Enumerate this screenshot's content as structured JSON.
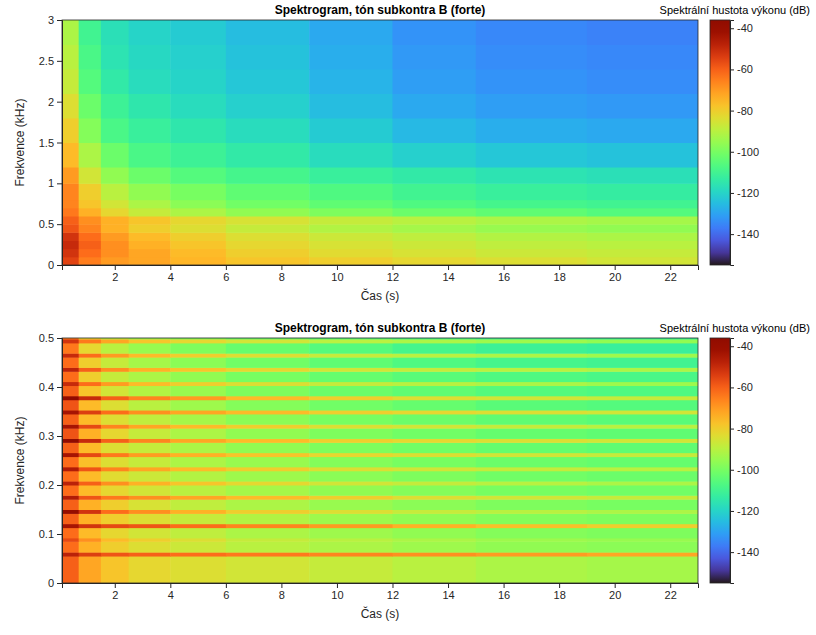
{
  "chart_data": [
    {
      "type": "heatmap",
      "title": "Spektrogram, tón subkontra B (forte)",
      "x_label": "Čas (s)",
      "y_label": "Frekvence (kHz)",
      "xlim": [
        0.1,
        23
      ],
      "xticks": [
        2,
        4,
        6,
        8,
        10,
        12,
        14,
        16,
        18,
        20,
        22
      ],
      "ylim": [
        0,
        3
      ],
      "yticks": [
        0,
        0.5,
        1,
        1.5,
        2,
        2.5,
        3
      ],
      "x_bins": [
        0.1,
        0.7,
        1.5,
        2.5,
        4,
        6,
        9,
        12,
        15,
        19,
        23
      ],
      "y_bins": [
        0,
        0.1,
        0.2,
        0.3,
        0.4,
        0.5,
        0.6,
        0.7,
        0.8,
        1,
        1.2,
        1.5,
        1.8,
        2.1,
        2.4,
        2.7,
        3
      ],
      "cells": [
        [
          -55,
          -65,
          -70,
          -72,
          -75,
          -78,
          -80,
          -82,
          -84,
          -86
        ],
        [
          -52,
          -62,
          -68,
          -72,
          -76,
          -80,
          -83,
          -85,
          -87,
          -88
        ],
        [
          -50,
          -60,
          -68,
          -74,
          -78,
          -82,
          -85,
          -87,
          -89,
          -90
        ],
        [
          -52,
          -62,
          -70,
          -76,
          -80,
          -84,
          -87,
          -89,
          -91,
          -92
        ],
        [
          -58,
          -66,
          -74,
          -80,
          -84,
          -88,
          -91,
          -93,
          -95,
          -96
        ],
        [
          -60,
          -68,
          -74,
          -78,
          -82,
          -85,
          -88,
          -90,
          -92,
          -93
        ],
        [
          -64,
          -74,
          -82,
          -88,
          -92,
          -96,
          -99,
          -102,
          -104,
          -106
        ],
        [
          -66,
          -78,
          -86,
          -92,
          -97,
          -101,
          -104,
          -107,
          -109,
          -110
        ],
        [
          -66,
          -80,
          -90,
          -96,
          -100,
          -104,
          -107,
          -110,
          -112,
          -113
        ],
        [
          -70,
          -86,
          -96,
          -102,
          -106,
          -109,
          -112,
          -114,
          -116,
          -117
        ],
        [
          -76,
          -92,
          -102,
          -108,
          -111,
          -114,
          -118,
          -121,
          -123,
          -124
        ],
        [
          -80,
          -98,
          -108,
          -112,
          -115,
          -118,
          -122,
          -126,
          -128,
          -129
        ],
        [
          -84,
          -102,
          -111,
          -115,
          -118,
          -121,
          -125,
          -129,
          -131,
          -132
        ],
        [
          -88,
          -106,
          -114,
          -118,
          -120,
          -123,
          -127,
          -131,
          -133,
          -134
        ],
        [
          -90,
          -108,
          -116,
          -119,
          -121,
          -124,
          -128,
          -132,
          -134,
          -135
        ],
        [
          -92,
          -110,
          -117,
          -120,
          -122,
          -125,
          -129,
          -133,
          -135,
          -136
        ]
      ],
      "colorbar": {
        "label": "Spektrální hustota výkonu (dB)",
        "range": [
          -155,
          -36
        ],
        "ticks": [
          -40,
          -60,
          -80,
          -100,
          -120,
          -140
        ]
      }
    },
    {
      "type": "heatmap",
      "title": "Spektrogram, tón subkontra B (forte)",
      "x_label": "Čas (s)",
      "y_label": "Frekvence (kHz)",
      "xlim": [
        0.1,
        23
      ],
      "xticks": [
        2,
        4,
        6,
        8,
        10,
        12,
        14,
        16,
        18,
        20,
        22
      ],
      "ylim": [
        0,
        0.5
      ],
      "yticks": [
        0,
        0.1,
        0.2,
        0.3,
        0.4,
        0.5
      ],
      "x_bins": [
        0.1,
        0.7,
        1.5,
        2.5,
        4,
        6,
        9,
        12,
        15,
        19,
        23
      ],
      "y_bins": [
        0,
        0.055,
        0.063,
        0.085,
        0.092,
        0.113,
        0.121,
        0.142,
        0.15,
        0.171,
        0.179,
        0.2,
        0.208,
        0.229,
        0.237,
        0.258,
        0.266,
        0.287,
        0.295,
        0.316,
        0.324,
        0.345,
        0.353,
        0.374,
        0.382,
        0.403,
        0.411,
        0.432,
        0.44,
        0.461,
        0.469,
        0.49,
        0.498,
        0.5
      ],
      "cells": [
        [
          -60,
          -72,
          -78,
          -82,
          -84,
          -86,
          -88,
          -90,
          -92,
          -93
        ],
        [
          -48,
          -54,
          -58,
          -60,
          -62,
          -64,
          -66,
          -68,
          -70,
          -72
        ],
        [
          -62,
          -74,
          -80,
          -84,
          -87,
          -90,
          -92,
          -94,
          -96,
          -97
        ],
        [
          -56,
          -68,
          -76,
          -80,
          -84,
          -88,
          -90,
          -92,
          -94,
          -95
        ],
        [
          -62,
          -76,
          -82,
          -86,
          -89,
          -92,
          -94,
          -96,
          -98,
          -99
        ],
        [
          -44,
          -52,
          -56,
          -58,
          -62,
          -66,
          -70,
          -74,
          -77,
          -80
        ],
        [
          -60,
          -74,
          -80,
          -84,
          -88,
          -91,
          -94,
          -96,
          -98,
          -99
        ],
        [
          -40,
          -52,
          -62,
          -68,
          -74,
          -80,
          -84,
          -88,
          -90,
          -92
        ],
        [
          -60,
          -74,
          -80,
          -85,
          -89,
          -92,
          -95,
          -97,
          -99,
          -100
        ],
        [
          -46,
          -58,
          -64,
          -68,
          -72,
          -76,
          -80,
          -84,
          -86,
          -88
        ],
        [
          -62,
          -76,
          -82,
          -86,
          -90,
          -93,
          -96,
          -98,
          -100,
          -101
        ],
        [
          -48,
          -60,
          -68,
          -74,
          -78,
          -82,
          -86,
          -88,
          -90,
          -92
        ],
        [
          -62,
          -76,
          -83,
          -87,
          -91,
          -94,
          -97,
          -99,
          -101,
          -102
        ],
        [
          -46,
          -58,
          -66,
          -72,
          -76,
          -80,
          -84,
          -86,
          -88,
          -90
        ],
        [
          -62,
          -77,
          -84,
          -88,
          -92,
          -95,
          -98,
          -100,
          -102,
          -103
        ],
        [
          -44,
          -56,
          -64,
          -70,
          -74,
          -78,
          -82,
          -84,
          -86,
          -88
        ],
        [
          -60,
          -76,
          -84,
          -88,
          -92,
          -96,
          -99,
          -101,
          -103,
          -104
        ],
        [
          -38,
          -50,
          -60,
          -66,
          -72,
          -76,
          -80,
          -82,
          -84,
          -86
        ],
        [
          -58,
          -74,
          -82,
          -88,
          -92,
          -96,
          -99,
          -101,
          -103,
          -104
        ],
        [
          -44,
          -56,
          -66,
          -72,
          -76,
          -80,
          -84,
          -86,
          -88,
          -90
        ],
        [
          -60,
          -76,
          -84,
          -89,
          -93,
          -97,
          -100,
          -102,
          -104,
          -105
        ],
        [
          -44,
          -54,
          -62,
          -68,
          -72,
          -76,
          -80,
          -82,
          -84,
          -86
        ],
        [
          -58,
          -76,
          -84,
          -90,
          -94,
          -98,
          -101,
          -103,
          -105,
          -106
        ],
        [
          -38,
          -50,
          -60,
          -66,
          -70,
          -76,
          -80,
          -84,
          -86,
          -88
        ],
        [
          -60,
          -78,
          -86,
          -91,
          -95,
          -99,
          -102,
          -104,
          -106,
          -107
        ],
        [
          -50,
          -62,
          -70,
          -76,
          -80,
          -84,
          -88,
          -90,
          -92,
          -94
        ],
        [
          -62,
          -80,
          -88,
          -92,
          -96,
          -100,
          -103,
          -105,
          -107,
          -108
        ],
        [
          -48,
          -60,
          -68,
          -74,
          -78,
          -82,
          -86,
          -88,
          -90,
          -92
        ],
        [
          -62,
          -80,
          -88,
          -93,
          -97,
          -101,
          -104,
          -107,
          -109,
          -110
        ],
        [
          -50,
          -62,
          -70,
          -76,
          -80,
          -84,
          -88,
          -90,
          -92,
          -94
        ],
        [
          -64,
          -82,
          -90,
          -95,
          -99,
          -103,
          -106,
          -109,
          -111,
          -112
        ],
        [
          -52,
          -64,
          -72,
          -78,
          -82,
          -86,
          -90,
          -92,
          -94,
          -96
        ],
        [
          -64,
          -82,
          -90,
          -95,
          -99,
          -103,
          -106,
          -109,
          -111,
          -112
        ]
      ],
      "colorbar": {
        "label": "Spektrální hustota výkonu (dB)",
        "range": [
          -155,
          -36
        ],
        "ticks": [
          -40,
          -60,
          -80,
          -100,
          -120,
          -140
        ]
      }
    }
  ]
}
